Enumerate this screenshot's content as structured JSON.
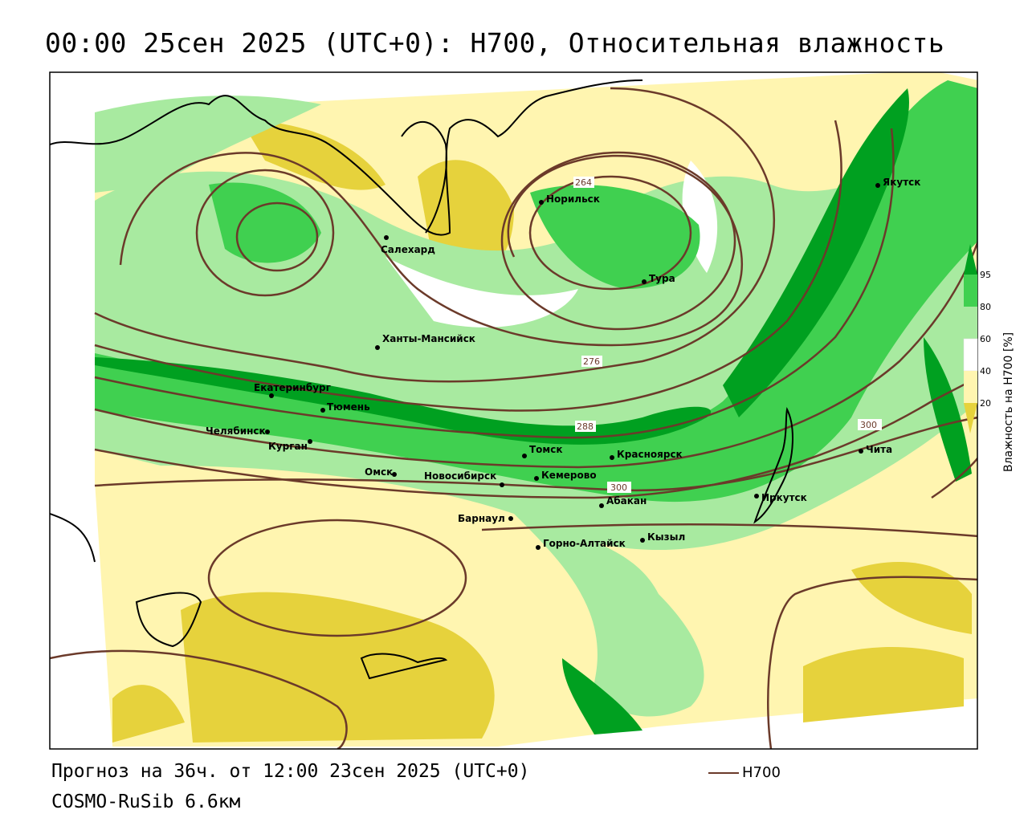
{
  "title": "00:00 25сен 2025 (UTC+0): H700, Относительная влажность",
  "footer": {
    "forecast": "Прогноз на 36ч. от 12:00 23сен 2025 (UTC+0)",
    "model": "COSMO-RuSib 6.6км"
  },
  "legend": {
    "line_label": "H700",
    "line_color": "#6b3a2a"
  },
  "colorbar": {
    "title": "Влажность на H700 [%]",
    "ticks": [
      "95",
      "80",
      "60",
      "40",
      "20"
    ],
    "colors": [
      "#00a020",
      "#40d050",
      "#a8eaa0",
      "#ffffff",
      "#fff5b0",
      "#e6d23c"
    ]
  },
  "contour_labels": [
    "264",
    "276",
    "288",
    "300",
    "300"
  ],
  "cities": [
    {
      "name": "Якутск"
    },
    {
      "name": "Норильск"
    },
    {
      "name": "Салехард"
    },
    {
      "name": "Тура"
    },
    {
      "name": "Ханты-Мансийск"
    },
    {
      "name": "Екатеринбург"
    },
    {
      "name": "Тюмень"
    },
    {
      "name": "Челябинск"
    },
    {
      "name": "Курган"
    },
    {
      "name": "Омск"
    },
    {
      "name": "Томск"
    },
    {
      "name": "Красноярск"
    },
    {
      "name": "Кемерово"
    },
    {
      "name": "Новосибирск"
    },
    {
      "name": "Абакан"
    },
    {
      "name": "Иркутск"
    },
    {
      "name": "Чита"
    },
    {
      "name": "Барнаул"
    },
    {
      "name": "Кызыл"
    },
    {
      "name": "Горно-Алтайск"
    }
  ]
}
